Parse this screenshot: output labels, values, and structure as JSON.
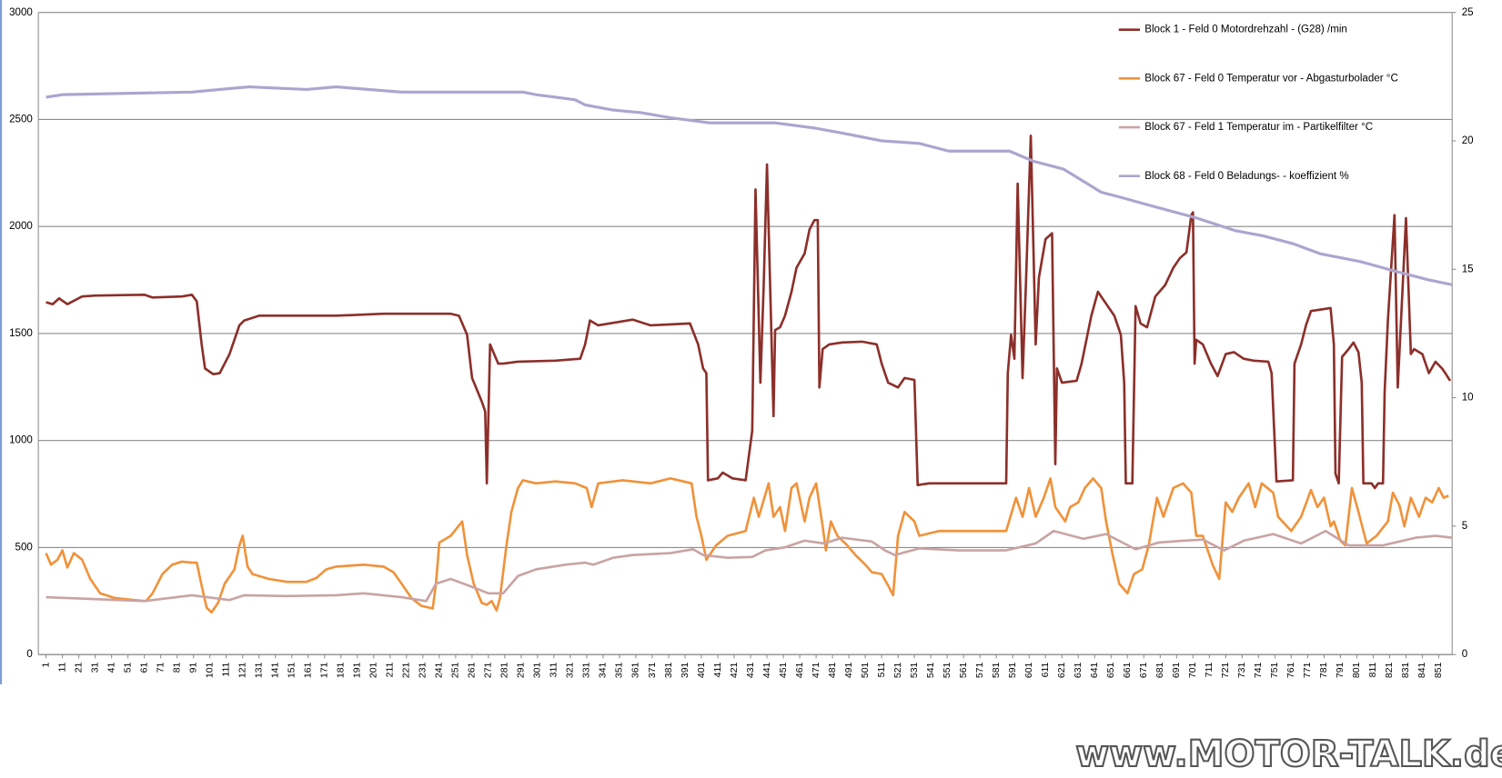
{
  "chart_data": {
    "type": "line",
    "xlim": [
      -3.7,
      859.2
    ],
    "xticks": [
      1,
      11,
      21,
      31,
      41,
      51,
      61,
      71,
      81,
      91,
      101,
      111,
      121,
      131,
      141,
      151,
      161,
      171,
      181,
      191,
      201,
      211,
      221,
      231,
      241,
      251,
      261,
      271,
      281,
      291,
      301,
      311,
      321,
      331,
      341,
      351,
      361,
      371,
      381,
      391,
      401,
      411,
      421,
      431,
      441,
      451,
      461,
      471,
      481,
      491,
      501,
      511,
      521,
      531,
      541,
      551,
      561,
      571,
      581,
      591,
      601,
      611,
      621,
      631,
      641,
      651,
      661,
      671,
      681,
      691,
      701,
      711,
      721,
      731,
      741,
      751,
      761,
      771,
      781,
      791,
      801,
      811,
      821,
      831,
      841,
      851
    ],
    "ylim": [
      0,
      3000
    ],
    "yticks": [
      0,
      500,
      1000,
      1500,
      2000,
      2500,
      3000
    ],
    "y2lim": [
      0,
      25
    ],
    "y2ticks": [
      0,
      5,
      10,
      15,
      20,
      25
    ],
    "grid": true,
    "legend": "top-right",
    "watermark": "www.MOTOR-TALK.de",
    "series": [
      {
        "name": "Block 1 - Feld 0 Motordrehzahl - (G28)  /min",
        "color": "#8c2f2a",
        "x": [
          1,
          5,
          9,
          14,
          23,
          31,
          61,
          66,
          84,
          90,
          93,
          96,
          98,
          103,
          107,
          113,
          116,
          119,
          122,
          131,
          148,
          178,
          207,
          248,
          253,
          258,
          261,
          267,
          269,
          270,
          272,
          277,
          280,
          289,
          312,
          327,
          330,
          333,
          338,
          359,
          370,
          394,
          399,
          402,
          404,
          405,
          411,
          414,
          420,
          428,
          432,
          434,
          437,
          439,
          441,
          445,
          446,
          449,
          452,
          456,
          459,
          464,
          467,
          470,
          472,
          473,
          475,
          479,
          487,
          499,
          508,
          511,
          515,
          521,
          525,
          531,
          533,
          540,
          558,
          587,
          588,
          590,
          592,
          594,
          597,
          599,
          602,
          605,
          607,
          611,
          615,
          617,
          618,
          621,
          630,
          633,
          639,
          643,
          647,
          653,
          657,
          659,
          660,
          664,
          666,
          669,
          673,
          678,
          684,
          689,
          693,
          697,
          700,
          701,
          702,
          703,
          707,
          712,
          716,
          721,
          726,
          732,
          738,
          747,
          749,
          752,
          762,
          763,
          767,
          770,
          773,
          785,
          787,
          788,
          790,
          792,
          796,
          799,
          802,
          804,
          805,
          810,
          812,
          814,
          817,
          818,
          820,
          824,
          826,
          829,
          831,
          834,
          836,
          841,
          845,
          849,
          853,
          855,
          858
        ],
        "values": [
          1646,
          1637,
          1664,
          1637,
          1673,
          1677,
          1681,
          1668,
          1673,
          1681,
          1650,
          1449,
          1337,
          1310,
          1315,
          1404,
          1471,
          1538,
          1561,
          1583,
          1583,
          1583,
          1592,
          1592,
          1583,
          1494,
          1292,
          1181,
          1136,
          800,
          1449,
          1359,
          1359,
          1368,
          1373,
          1382,
          1449,
          1561,
          1538,
          1565,
          1538,
          1547,
          1449,
          1337,
          1315,
          814,
          823,
          850,
          823,
          814,
          1046,
          2173,
          1270,
          1717,
          2290,
          1114,
          1516,
          1529,
          1583,
          1695,
          1807,
          1874,
          1986,
          2030,
          2030,
          1248,
          1427,
          1449,
          1458,
          1462,
          1449,
          1359,
          1270,
          1248,
          1292,
          1283,
          792,
          800,
          800,
          800,
          1315,
          1494,
          1382,
          2200,
          1292,
          1717,
          2424,
          1449,
          1762,
          1941,
          1968,
          890,
          1337,
          1270,
          1279,
          1359,
          1583,
          1695,
          1650,
          1583,
          1494,
          1270,
          800,
          800,
          1628,
          1547,
          1529,
          1673,
          1726,
          1807,
          1852,
          1879,
          2053,
          2066,
          1359,
          1471,
          1449,
          1359,
          1301,
          1404,
          1413,
          1382,
          1373,
          1368,
          1315,
          809,
          814,
          1359,
          1449,
          1538,
          1605,
          1619,
          1449,
          845,
          800,
          1391,
          1427,
          1458,
          1413,
          1270,
          800,
          800,
          778,
          800,
          800,
          1225,
          1561,
          2053,
          1248,
          1717,
          2039,
          1404,
          1427,
          1404,
          1315,
          1368,
          1337,
          1315,
          1279
        ]
      },
      {
        "name": "Block 67 - Feld 0 Temperatur  vor  - Abgasturbolader °C",
        "color": "#f0923a",
        "x": [
          1,
          4,
          8,
          11,
          14,
          18,
          23,
          28,
          34,
          43,
          55,
          62,
          66,
          72,
          78,
          84,
          90,
          93,
          96,
          99,
          102,
          106,
          110,
          116,
          119,
          121,
          124,
          127,
          137,
          148,
          160,
          166,
          172,
          178,
          195,
          207,
          213,
          218,
          224,
          230,
          237,
          239,
          241,
          248,
          255,
          258,
          262,
          267,
          270,
          273,
          276,
          278,
          282,
          285,
          289,
          292,
          300,
          312,
          324,
          331,
          334,
          338,
          353,
          370,
          382,
          395,
          398,
          401,
          404,
          410,
          417,
          428,
          433,
          436,
          442,
          445,
          449,
          452,
          456,
          459,
          464,
          467,
          471,
          475,
          477,
          480,
          484,
          490,
          495,
          501,
          505,
          511,
          515,
          518,
          521,
          525,
          531,
          534,
          546,
          587,
          593,
          597,
          601,
          605,
          610,
          614,
          617,
          623,
          626,
          631,
          635,
          640,
          645,
          648,
          652,
          656,
          661,
          665,
          670,
          674,
          679,
          683,
          689,
          695,
          700,
          703,
          707,
          713,
          717,
          721,
          725,
          729,
          735,
          739,
          743,
          750,
          753,
          761,
          767,
          773,
          777,
          781,
          785,
          787,
          791,
          794,
          798,
          802,
          807,
          813,
          820,
          823,
          827,
          830,
          834,
          839,
          843,
          847,
          851,
          854,
          857
        ],
        "values": [
          474,
          420,
          443,
          487,
          407,
          474,
          443,
          353,
          286,
          264,
          255,
          250,
          286,
          376,
          420,
          434,
          429,
          429,
          322,
          219,
          197,
          241,
          331,
          398,
          510,
          555,
          411,
          376,
          353,
          340,
          340,
          358,
          398,
          411,
          420,
          411,
          385,
          331,
          264,
          228,
          215,
          331,
          523,
          555,
          622,
          465,
          331,
          241,
          233,
          250,
          206,
          264,
          510,
          666,
          778,
          814,
          800,
          809,
          800,
          778,
          689,
          800,
          814,
          800,
          823,
          800,
          644,
          555,
          443,
          510,
          555,
          577,
          733,
          644,
          800,
          644,
          689,
          577,
          778,
          800,
          622,
          733,
          800,
          599,
          487,
          622,
          555,
          510,
          465,
          420,
          385,
          376,
          322,
          277,
          555,
          666,
          622,
          555,
          577,
          577,
          733,
          644,
          778,
          644,
          733,
          823,
          689,
          622,
          689,
          711,
          778,
          823,
          778,
          622,
          465,
          331,
          286,
          376,
          398,
          510,
          733,
          644,
          778,
          800,
          756,
          555,
          555,
          420,
          353,
          711,
          666,
          733,
          800,
          689,
          800,
          756,
          644,
          577,
          644,
          769,
          689,
          733,
          599,
          622,
          532,
          510,
          778,
          666,
          519,
          555,
          622,
          756,
          698,
          599,
          733,
          644,
          733,
          711,
          778,
          733,
          742
        ]
      },
      {
        "name": "Block 67 - Feld 1 Temperatur  im  - Partikelfilter °C",
        "color": "#c9a3a3",
        "x": [
          1,
          31,
          61,
          90,
          113,
          122,
          148,
          178,
          195,
          218,
          233,
          239,
          248,
          259,
          271,
          280,
          289,
          300,
          318,
          330,
          335,
          347,
          359,
          382,
          396,
          402,
          417,
          432,
          440,
          452,
          464,
          476,
          487,
          505,
          513,
          519,
          534,
          558,
          587,
          605,
          616,
          634,
          648,
          666,
          680,
          695,
          707,
          720,
          732,
          750,
          767,
          782,
          796,
          817,
          837,
          849,
          859
        ],
        "values": [
          268,
          259,
          250,
          277,
          255,
          277,
          273,
          277,
          286,
          268,
          250,
          331,
          353,
          322,
          286,
          286,
          367,
          398,
          420,
          429,
          420,
          452,
          465,
          474,
          492,
          465,
          452,
          456,
          487,
          501,
          532,
          519,
          546,
          528,
          487,
          465,
          496,
          487,
          487,
          519,
          577,
          541,
          563,
          492,
          523,
          532,
          537,
          487,
          532,
          563,
          519,
          577,
          510,
          510,
          546,
          555,
          546
        ]
      },
      {
        "name": "Block 68 - Feld 0 Beladungs- - koeffizient  %",
        "color": "#ada4cf",
        "axis": "y2",
        "x": [
          1,
          11,
          90,
          107,
          125,
          160,
          178,
          218,
          292,
          300,
          312,
          324,
          330,
          347,
          364,
          382,
          406,
          446,
          470,
          487,
          511,
          534,
          552,
          589,
          604,
          622,
          645,
          657,
          674,
          703,
          727,
          744,
          762,
          779,
          803,
          826,
          844,
          859
        ],
        "values": [
          21.7,
          21.8,
          21.9,
          22.0,
          22.1,
          22.0,
          22.1,
          21.9,
          21.9,
          21.8,
          21.7,
          21.6,
          21.4,
          21.2,
          21.1,
          20.9,
          20.7,
          20.7,
          20.5,
          20.3,
          20.0,
          19.9,
          19.6,
          19.6,
          19.2,
          18.9,
          18.0,
          17.8,
          17.5,
          17.0,
          16.5,
          16.3,
          16.0,
          15.6,
          15.3,
          14.9,
          14.6,
          14.4
        ]
      }
    ]
  }
}
